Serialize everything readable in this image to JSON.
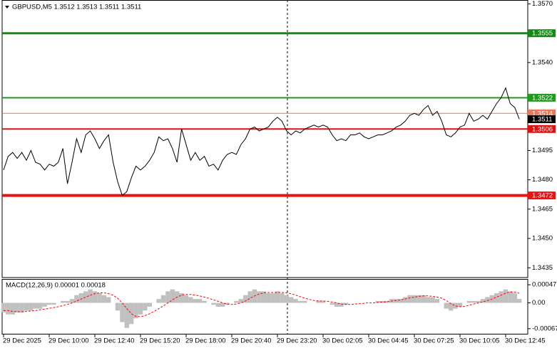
{
  "chart_data": [
    {
      "type": "line",
      "title": "GBPUSD,M5  1.3512 1.3513 1.3511 1.3511",
      "xlim": [
        0,
        115
      ],
      "ylim": [
        1.343,
        1.3572
      ],
      "yticks": [
        {
          "value": 1.357,
          "label": "1.3570"
        },
        {
          "value": 1.354,
          "label": "1.3540"
        },
        1.3495,
        {
          "value": 1.348,
          "label": "1.3480"
        },
        1.3465,
        {
          "value": 1.345,
          "label": "1.3450"
        },
        1.3435
      ],
      "levels": [
        {
          "value": 1.3555,
          "color": "#138a13",
          "width": 3
        },
        {
          "value": 1.3522,
          "color": "#1f9a1f",
          "width": 2
        },
        {
          "value": 1.3514,
          "color": "#e8785a",
          "width": 1
        },
        {
          "value": 1.3511,
          "color": "#000000",
          "width": 0
        },
        {
          "value": 1.3506,
          "color": "#e01010",
          "width": 2
        },
        {
          "value": 1.3472,
          "color": "#ee1111",
          "width": 4
        }
      ],
      "series": [
        {
          "color": "#000000",
          "values": [
            1.3485,
            1.3492,
            1.3494,
            1.3491,
            1.3494,
            1.349,
            1.3495,
            1.3489,
            1.3488,
            1.3485,
            1.3488,
            1.3487,
            1.3489,
            1.3496,
            1.3478,
            1.3489,
            1.3501,
            1.3494,
            1.3503,
            1.3505,
            1.3501,
            1.3496,
            1.35,
            1.3503,
            1.3489,
            1.3479,
            1.3472,
            1.3474,
            1.3481,
            1.3487,
            1.3485,
            1.3487,
            1.349,
            1.3494,
            1.3502,
            1.35,
            1.3501,
            1.3496,
            1.3489,
            1.3506,
            1.3498,
            1.349,
            1.3494,
            1.349,
            1.3492,
            1.3487,
            1.3488,
            1.3485,
            1.349,
            1.3493,
            1.3494,
            1.3493,
            1.3498,
            1.3501,
            1.3506,
            1.3507,
            1.3505,
            1.3506,
            1.3507,
            1.351,
            1.3512,
            1.351,
            1.3505,
            1.3503,
            1.3505,
            1.3504,
            1.3506,
            1.3507,
            1.3508,
            1.3507,
            1.3508,
            1.3507,
            1.3503,
            1.35,
            1.3501,
            1.35,
            1.3503,
            1.3503,
            1.3504,
            1.3502,
            1.3501,
            1.3502,
            1.3503,
            1.3503,
            1.3504,
            1.3505,
            1.3507,
            1.3508,
            1.351,
            1.3513,
            1.3514,
            1.3513,
            1.3516,
            1.3518,
            1.3513,
            1.3515,
            1.351,
            1.3503,
            1.3502,
            1.3504,
            1.3507,
            1.3508,
            1.3514,
            1.351,
            1.3511,
            1.3513,
            1.3511,
            1.3515,
            1.3519,
            1.3522,
            1.3527,
            1.3519,
            1.3517,
            1.3511
          ]
        }
      ]
    },
    {
      "type": "macd",
      "title": "MACD(12,26,9) 0.00001 0.00018",
      "ylim": [
        -0.00082,
        0.00062
      ],
      "yticks": [
        0.00047,
        {
          "value": 0,
          "label": "0.00"
        },
        -0.00067
      ],
      "xticks": [
        {
          "value": 0,
          "label": "29 Dec 2025"
        },
        {
          "value": 10,
          "label": "29 Dec 10:00"
        },
        {
          "value": 20,
          "label": "29 Dec 12:40"
        },
        {
          "value": 30,
          "label": "29 Dec 15:20"
        },
        {
          "value": 40,
          "label": "29 Dec 18:00"
        },
        {
          "value": 50,
          "label": "29 Dec 20:40"
        },
        {
          "value": 60,
          "label": "29 Dec 23:20"
        },
        {
          "value": 70,
          "label": "30 Dec 02:05"
        },
        {
          "value": 80,
          "label": "30 Dec 04:45"
        },
        {
          "value": 90,
          "label": "30 Dec 07:25"
        },
        {
          "value": 100,
          "label": "30 Dec 10:05"
        },
        {
          "value": 110,
          "label": "30 Dec 12:45"
        }
      ],
      "series": [
        {
          "type": "bar",
          "color": "#c0c0c0",
          "values": [
            -0.00025,
            -0.0003,
            -0.0003,
            -0.00025,
            -0.00025,
            -0.0002,
            -0.0002,
            -0.00015,
            -0.00015,
            -0.0001,
            -5e-05,
            -5e-05,
            0,
            5e-05,
            5e-05,
            0.0001,
            0.0002,
            0.00025,
            0.0003,
            0.00035,
            0.0003,
            0.00025,
            0.0002,
            0.00015,
            0,
            -0.0002,
            -0.0005,
            -0.00065,
            -0.00055,
            -0.0004,
            -0.0003,
            -0.0002,
            -0.0001,
            0,
            0.0001,
            0.0002,
            0.0003,
            0.00035,
            0.0003,
            0.00025,
            0.0002,
            0.00015,
            0.0001,
            0.0001,
            5e-05,
            0,
            -5e-05,
            -0.0001,
            -0.0001,
            -5e-05,
            0,
            5e-05,
            0.0001,
            0.0002,
            0.0003,
            0.00035,
            0.0003,
            0.0003,
            0.00025,
            0.00025,
            0.0003,
            0.00025,
            0.0002,
            0.00015,
            0.0001,
            5e-05,
            5e-05,
            0,
            0,
            5e-05,
            5e-05,
            0,
            -5e-05,
            -0.0001,
            -0.0001,
            -5e-05,
            0,
            0,
            0,
            0,
            0,
            0,
            5e-05,
            5e-05,
            5e-05,
            0.0001,
            0.0001,
            0.0001,
            0.00015,
            0.0002,
            0.0002,
            0.0002,
            0.0002,
            0.00015,
            0.00015,
            0.0001,
            0,
            -0.00015,
            -0.0002,
            -0.00015,
            -0.0001,
            0,
            5e-05,
            5e-05,
            5e-05,
            0.0001,
            0.00015,
            0.0002,
            0.00025,
            0.0003,
            0.00035,
            0.0003,
            0.00025,
            0.0001
          ]
        },
        {
          "type": "line",
          "color": "#ff0000",
          "values": [
            -0.0002,
            -0.0002,
            -0.00022,
            -0.00023,
            -0.00023,
            -0.00022,
            -0.00021,
            -0.0002,
            -0.00018,
            -0.00016,
            -0.00014,
            -0.00012,
            -0.0001,
            -7e-05,
            -4e-05,
            0,
            5e-05,
            0.0001,
            0.00015,
            0.0002,
            0.00024,
            0.00026,
            0.00026,
            0.00024,
            0.0002,
            0.00012,
            0,
            -0.00015,
            -0.00028,
            -0.00035,
            -0.00036,
            -0.00033,
            -0.00028,
            -0.00022,
            -0.00015,
            -8e-05,
            0,
            8e-05,
            0.00015,
            0.0002,
            0.00022,
            0.00022,
            0.0002,
            0.00018,
            0.00015,
            0.00012,
            8e-05,
            4e-05,
            0,
            -3e-05,
            -4e-05,
            -3e-05,
            0,
            5e-05,
            0.00012,
            0.00018,
            0.00023,
            0.00026,
            0.00027,
            0.00027,
            0.00027,
            0.00027,
            0.00026,
            0.00024,
            0.0002,
            0.00016,
            0.00012,
            9e-05,
            6e-05,
            5e-05,
            5e-05,
            4e-05,
            2e-05,
            0,
            -3e-05,
            -4e-05,
            -4e-05,
            -3e-05,
            -2e-05,
            -1e-05,
            0,
            0,
            1e-05,
            2e-05,
            3e-05,
            5e-05,
            6e-05,
            8e-05,
            0.0001,
            0.00013,
            0.00015,
            0.00017,
            0.00018,
            0.00018,
            0.00017,
            0.00015,
            0.00012,
            6e-05,
            -2e-05,
            -8e-05,
            -0.0001,
            -9e-05,
            -6e-05,
            -3e-05,
            0,
            3e-05,
            6e-05,
            0.0001,
            0.00015,
            0.0002,
            0.00025,
            0.00028,
            0.00028,
            0.00025
          ]
        }
      ]
    }
  ]
}
